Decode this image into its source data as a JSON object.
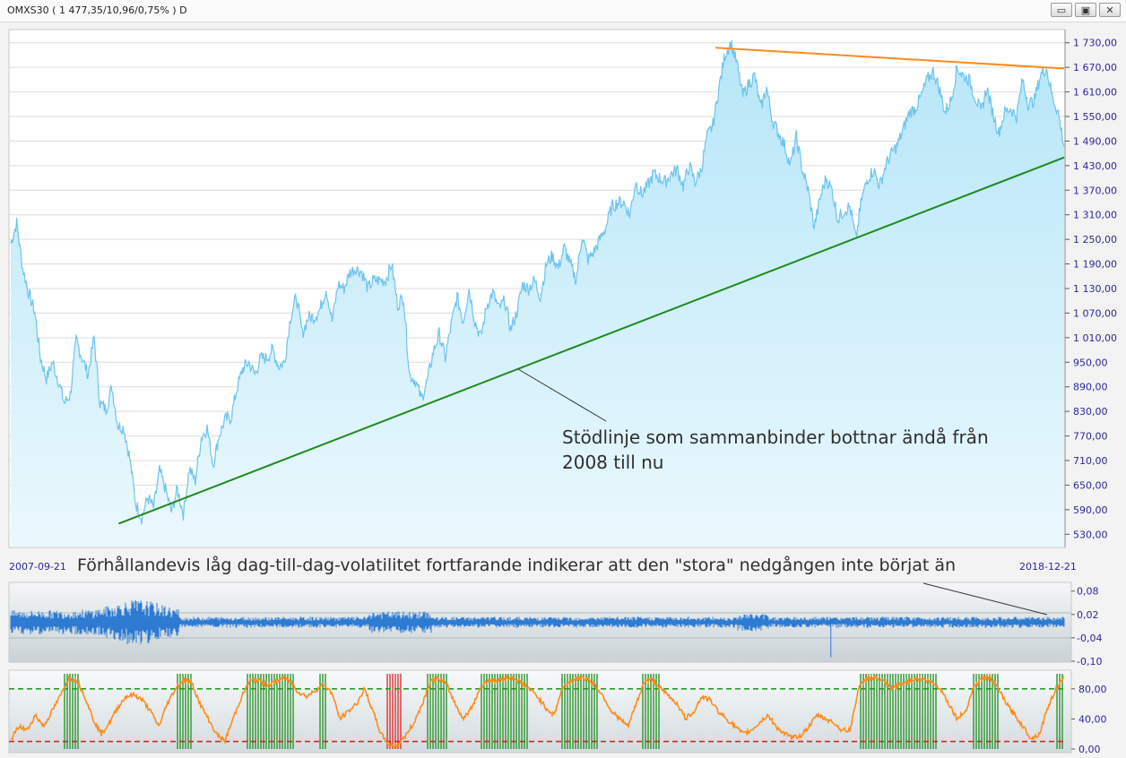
{
  "window": {
    "title": "OMXS30 ( 1 477,35/10,96/0,75% )  D",
    "buttons": {
      "minimize": "▭",
      "restore": "▣",
      "close": "✕"
    }
  },
  "dates": {
    "start": "2007-09-21",
    "end": "2018-12-21"
  },
  "annotations": {
    "support": [
      "Stödlinje som sammanbinder bottnar ändå från",
      "2008 till nu"
    ],
    "volatility": "Förhållandevis låg dag-till-dag-volatilitet fortfarande indikerar att den \"stora\" nedgången inte börjat än"
  },
  "colors": {
    "price_line": "#6ec4ee",
    "price_fill_top": "#b6e6f8",
    "price_fill_bottom": "#eaf8fd",
    "support_line": "#1f8a1f",
    "resistance_line": "#ff8a1e",
    "returns": "#1a6fd0",
    "oscillator": "#ff8c1a",
    "overbought_bar": "#1e8e1e",
    "oversold_bar": "#dd2222",
    "upper_band": "#2a9a2a",
    "lower_band": "#dd2222"
  },
  "chart_data": [
    {
      "type": "area",
      "name": "price",
      "x_range": [
        "2007-09-21",
        "2018-12-21"
      ],
      "ylim": [
        500,
        1760
      ],
      "yticks": [
        "1 730,00",
        "1 670,00",
        "1 610,00",
        "1 550,00",
        "1 490,00",
        "1 430,00",
        "1 370,00",
        "1 310,00",
        "1 250,00",
        "1 190,00",
        "1 130,00",
        "1 070,00",
        "1 010,00",
        "950,00",
        "890,00",
        "830,00",
        "770,00",
        "710,00",
        "650,00",
        "590,00",
        "530,00"
      ],
      "ytick_values": [
        1730,
        1670,
        1610,
        1550,
        1490,
        1430,
        1370,
        1310,
        1250,
        1190,
        1130,
        1070,
        1010,
        950,
        890,
        830,
        770,
        710,
        650,
        590,
        530
      ],
      "grid": true,
      "values": [
        1240,
        1290,
        1180,
        1120,
        1075,
        960,
        910,
        950,
        905,
        850,
        870,
        1005,
        960,
        920,
        1010,
        850,
        835,
        890,
        795,
        790,
        715,
        605,
        570,
        620,
        595,
        685,
        640,
        585,
        640,
        580,
        690,
        660,
        765,
        790,
        700,
        770,
        810,
        815,
        885,
        935,
        950,
        920,
        960,
        960,
        980,
        940,
        950,
        1060,
        1110,
        1020,
        1060,
        1060,
        1080,
        1130,
        1050,
        1140,
        1130,
        1170,
        1180,
        1170,
        1130,
        1150,
        1150,
        1150,
        1190,
        1090,
        1110,
        920,
        905,
        860,
        905,
        975,
        1020,
        960,
        1040,
        1110,
        1050,
        1130,
        1050,
        1010,
        1090,
        1120,
        1080,
        1100,
        1030,
        1070,
        1140,
        1130,
        1150,
        1110,
        1190,
        1210,
        1180,
        1230,
        1190,
        1150,
        1260,
        1200,
        1220,
        1250,
        1280,
        1330,
        1340,
        1340,
        1310,
        1390,
        1360,
        1380,
        1410,
        1400,
        1390,
        1410,
        1420,
        1380,
        1430,
        1390,
        1420,
        1500,
        1530,
        1620,
        1700,
        1730,
        1680,
        1600,
        1630,
        1650,
        1570,
        1620,
        1540,
        1510,
        1480,
        1430,
        1500,
        1420,
        1370,
        1280,
        1350,
        1400,
        1370,
        1300,
        1320,
        1330,
        1250,
        1350,
        1400,
        1420,
        1380,
        1430,
        1460,
        1480,
        1520,
        1560,
        1570,
        1600,
        1640,
        1660,
        1620,
        1560,
        1590,
        1670,
        1650,
        1640,
        1600,
        1560,
        1620,
        1560,
        1510,
        1560,
        1570,
        1550,
        1640,
        1580,
        1590,
        1650,
        1670,
        1600,
        1560,
        1477
      ]
    },
    {
      "type": "line",
      "name": "trendlines",
      "series": [
        {
          "points": [
            [
              "2008-11-15",
              556
            ],
            [
              "2018-12-21",
              1450
            ]
          ]
        },
        {
          "points": [
            [
              "2015-04-01",
              1718
            ],
            [
              "2018-12-21",
              1667
            ]
          ]
        }
      ]
    },
    {
      "type": "bar",
      "name": "daily_change",
      "ylim": [
        -0.1,
        0.1
      ],
      "yticks": [
        "0,08",
        "0,02",
        "-0,04",
        "-0,10"
      ],
      "ytick_values": [
        0.08,
        0.02,
        -0.04,
        -0.1
      ]
    },
    {
      "type": "line",
      "name": "oscillator",
      "ylim": [
        0,
        100
      ],
      "yticks": [
        "80,00",
        "40,00",
        "0,00"
      ],
      "ytick_values": [
        80,
        40,
        0
      ],
      "upper_band": 80,
      "lower_band": 10,
      "values": [
        12,
        30,
        25,
        45,
        30,
        50,
        70,
        94,
        92,
        70,
        40,
        20,
        35,
        55,
        70,
        72,
        65,
        50,
        30,
        60,
        80,
        92,
        88,
        60,
        40,
        20,
        10,
        40,
        68,
        90,
        92,
        85,
        88,
        94,
        90,
        75,
        70,
        78,
        86,
        75,
        40,
        50,
        60,
        80,
        50,
        20,
        5,
        5,
        18,
        35,
        60,
        90,
        94,
        85,
        60,
        40,
        55,
        80,
        92,
        90,
        94,
        95,
        88,
        80,
        70,
        55,
        45,
        80,
        90,
        94,
        94,
        85,
        70,
        50,
        40,
        30,
        60,
        90,
        92,
        80,
        70,
        60,
        40,
        50,
        70,
        65,
        50,
        40,
        30,
        20,
        25,
        35,
        45,
        30,
        20,
        15,
        18,
        30,
        45,
        40,
        35,
        25,
        25,
        80,
        94,
        95,
        90,
        80,
        85,
        90,
        94,
        92,
        88,
        80,
        60,
        40,
        50,
        82,
        94,
        95,
        80,
        60,
        45,
        30,
        14,
        20,
        55,
        80,
        94
      ]
    }
  ]
}
